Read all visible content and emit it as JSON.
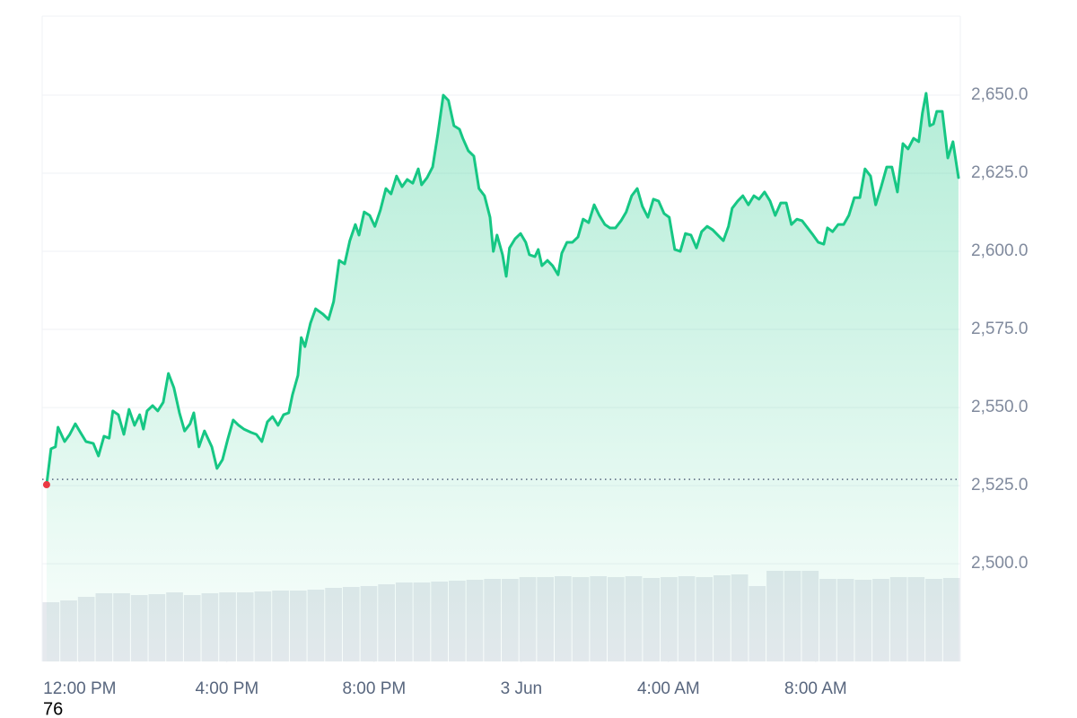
{
  "chart_data": {
    "type": "line",
    "xlim": [
      -1.02,
      23.93
    ],
    "xticks": [
      {
        "value": 0,
        "label": "12:00 PM"
      },
      {
        "value": 4,
        "label": "4:00 PM"
      },
      {
        "value": 8,
        "label": "8:00 PM"
      },
      {
        "value": 12,
        "label": "3 Jun"
      },
      {
        "value": 16,
        "label": "4:00 AM"
      },
      {
        "value": 20,
        "label": "8:00 AM"
      }
    ],
    "ylim": [
      2468.7,
      2675.3
    ],
    "yticks": [
      {
        "value": 2500,
        "label": "2,500.0"
      },
      {
        "value": 2525,
        "label": "2,525.0"
      },
      {
        "value": 2550,
        "label": "2,550.0"
      },
      {
        "value": 2575,
        "label": "2,575.0"
      },
      {
        "value": 2600,
        "label": "2,600.0"
      },
      {
        "value": 2625,
        "label": "2,625.0"
      },
      {
        "value": 2650,
        "label": "2,650.0"
      }
    ],
    "grid": true,
    "baseline": 2527,
    "start_marker_color": "#ea3943",
    "x": [
      -0.9,
      -0.78,
      -0.66,
      -0.59,
      -0.41,
      -0.27,
      -0.12,
      0.02,
      0.17,
      0.37,
      0.51,
      0.66,
      0.8,
      0.9,
      1.05,
      1.2,
      1.34,
      1.49,
      1.63,
      1.73,
      1.83,
      1.98,
      2.12,
      2.27,
      2.41,
      2.56,
      2.71,
      2.85,
      3.0,
      3.1,
      3.24,
      3.39,
      3.59,
      3.73,
      3.88,
      4.02,
      4.17,
      4.32,
      4.46,
      4.66,
      4.8,
      4.95,
      5.1,
      5.24,
      5.39,
      5.54,
      5.68,
      5.78,
      5.93,
      6.02,
      6.12,
      6.27,
      6.41,
      6.61,
      6.76,
      6.9,
      7.05,
      7.2,
      7.34,
      7.49,
      7.59,
      7.73,
      7.88,
      8.02,
      8.17,
      8.32,
      8.46,
      8.61,
      8.76,
      8.9,
      9.05,
      9.2,
      9.29,
      9.44,
      9.59,
      9.73,
      9.88,
      10.02,
      10.17,
      10.32,
      10.41,
      10.56,
      10.71,
      10.85,
      11.0,
      11.15,
      11.24,
      11.34,
      11.49,
      11.59,
      11.68,
      11.83,
      11.98,
      12.12,
      12.22,
      12.37,
      12.46,
      12.56,
      12.71,
      12.85,
      13.0,
      13.1,
      13.24,
      13.39,
      13.54,
      13.68,
      13.83,
      13.98,
      14.12,
      14.27,
      14.41,
      14.56,
      14.71,
      14.85,
      15.0,
      15.15,
      15.29,
      15.44,
      15.59,
      15.73,
      15.88,
      16.02,
      16.17,
      16.32,
      16.46,
      16.61,
      16.76,
      16.9,
      17.05,
      17.2,
      17.34,
      17.49,
      17.63,
      17.73,
      17.88,
      18.02,
      18.17,
      18.32,
      18.46,
      18.61,
      18.76,
      18.9,
      19.05,
      19.2,
      19.34,
      19.49,
      19.63,
      19.78,
      19.93,
      20.07,
      20.22,
      20.32,
      20.46,
      20.61,
      20.76,
      20.9,
      21.05,
      21.2,
      21.34,
      21.49,
      21.63,
      21.78,
      21.93,
      22.07,
      22.22,
      22.37,
      22.51,
      22.66,
      22.8,
      22.9,
      23.0,
      23.1,
      23.2,
      23.29,
      23.44,
      23.59,
      23.73,
      23.88
    ],
    "series": [
      {
        "color": "#16c784",
        "values": [
          2525.3,
          2536.8,
          2537.4,
          2543.7,
          2539.1,
          2541.4,
          2544.8,
          2542.0,
          2539.1,
          2538.5,
          2534.5,
          2540.8,
          2540.2,
          2548.9,
          2547.7,
          2541.4,
          2549.4,
          2544.3,
          2547.7,
          2543.1,
          2548.9,
          2550.6,
          2548.9,
          2551.7,
          2560.9,
          2556.3,
          2548.3,
          2542.5,
          2544.8,
          2548.3,
          2537.4,
          2542.5,
          2537.4,
          2530.5,
          2533.3,
          2539.7,
          2546.0,
          2544.3,
          2543.1,
          2542.0,
          2541.4,
          2539.1,
          2545.4,
          2547.1,
          2544.3,
          2547.7,
          2548.3,
          2554.0,
          2560.3,
          2572.4,
          2569.5,
          2577.0,
          2581.6,
          2579.9,
          2578.2,
          2583.9,
          2597.1,
          2596.0,
          2603.4,
          2608.6,
          2605.2,
          2612.6,
          2611.5,
          2608.0,
          2613.2,
          2620.1,
          2618.4,
          2624.1,
          2620.7,
          2623.0,
          2621.8,
          2626.4,
          2621.3,
          2623.6,
          2627.0,
          2637.4,
          2650.0,
          2648.3,
          2640.2,
          2639.1,
          2636.2,
          2632.2,
          2630.5,
          2620.1,
          2617.8,
          2610.9,
          2600.0,
          2605.2,
          2598.9,
          2592.0,
          2601.1,
          2604.0,
          2605.7,
          2602.9,
          2598.9,
          2598.3,
          2600.6,
          2595.4,
          2597.1,
          2595.4,
          2592.5,
          2599.4,
          2602.9,
          2602.9,
          2604.6,
          2610.3,
          2609.2,
          2614.9,
          2611.5,
          2608.6,
          2607.5,
          2607.5,
          2609.8,
          2612.6,
          2617.8,
          2620.1,
          2614.4,
          2610.9,
          2616.7,
          2616.1,
          2612.1,
          2610.9,
          2600.6,
          2600.0,
          2605.7,
          2605.2,
          2601.1,
          2606.3,
          2608.0,
          2606.9,
          2605.2,
          2603.4,
          2608.0,
          2613.8,
          2616.1,
          2617.8,
          2614.9,
          2617.8,
          2616.7,
          2619.0,
          2616.1,
          2611.5,
          2615.5,
          2615.5,
          2608.6,
          2610.3,
          2609.8,
          2607.5,
          2605.2,
          2602.9,
          2602.3,
          2607.5,
          2606.3,
          2608.6,
          2608.6,
          2611.5,
          2617.2,
          2617.2,
          2626.4,
          2624.1,
          2614.9,
          2620.7,
          2627.0,
          2627.0,
          2619.0,
          2634.5,
          2632.8,
          2636.2,
          2635.1,
          2644.3,
          2650.6,
          2640.2,
          2640.8,
          2644.8,
          2644.8,
          2629.9,
          2635.1,
          2623.6
        ]
      }
    ],
    "y2lim": [
      0,
      100
    ],
    "volume": {
      "color": "#e6e9ee",
      "values": [
        66,
        68,
        72,
        76,
        76,
        74,
        75,
        77,
        74,
        76,
        77,
        77,
        78,
        79,
        79,
        80,
        82,
        83,
        84,
        86,
        88,
        88,
        89,
        90,
        91,
        92,
        92,
        94,
        94,
        95,
        94,
        95,
        94,
        95,
        93,
        94,
        95,
        94,
        96,
        97,
        84,
        101,
        101,
        101,
        92,
        92,
        91,
        92,
        94,
        94,
        92,
        93
      ]
    },
    "footer_text": "76"
  }
}
